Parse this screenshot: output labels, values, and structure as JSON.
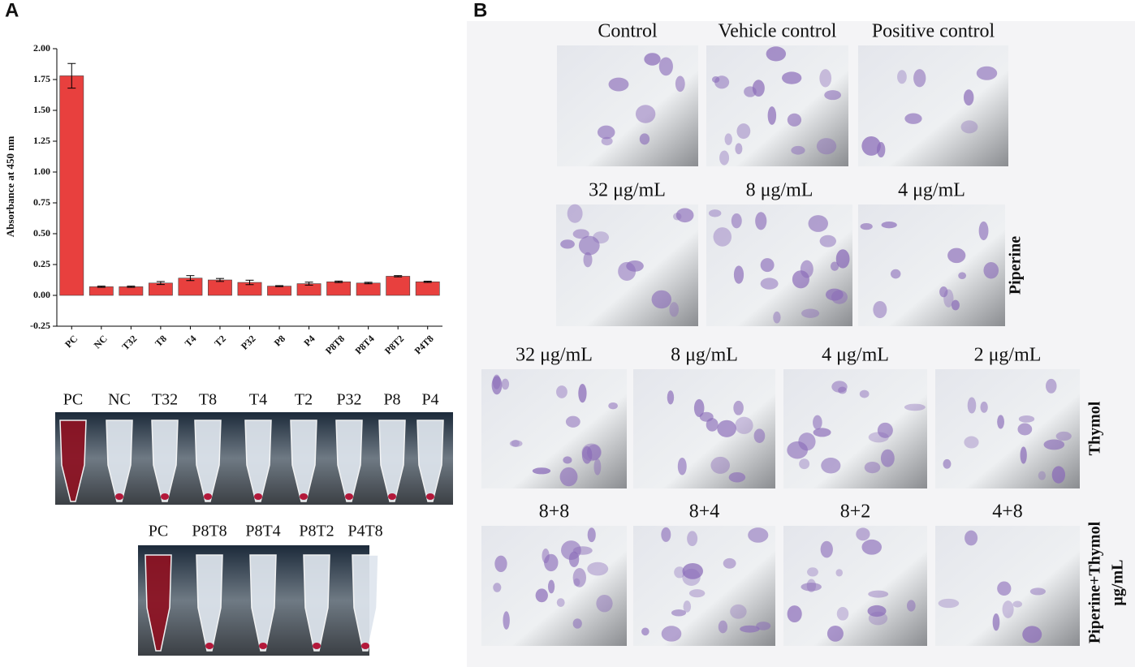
{
  "panels": [
    "A",
    "B"
  ],
  "chart_data": {
    "type": "bar",
    "ylabel": "Absorbance at 450 nm",
    "categories": [
      "PC",
      "NC",
      "T32",
      "T8",
      "T4",
      "T2",
      "P32",
      "P8",
      "P4",
      "P8T8",
      "P8T4",
      "P8T2",
      "P4T8"
    ],
    "values": [
      1.78,
      0.07,
      0.07,
      0.1,
      0.14,
      0.125,
      0.105,
      0.075,
      0.095,
      0.11,
      0.1,
      0.155,
      0.11
    ],
    "errors": [
      0.1,
      0.005,
      0.005,
      0.012,
      0.02,
      0.012,
      0.018,
      0.004,
      0.012,
      0.006,
      0.006,
      0.005,
      0.005
    ],
    "color": "#e8403e",
    "ylim": [
      -0.25,
      2.0
    ],
    "yticks": [
      {
        "value": -0.25,
        "label": "-0.25"
      },
      {
        "value": 0,
        "label": "0.00"
      },
      {
        "value": 0.25,
        "label": "0.25"
      },
      {
        "value": 0.5,
        "label": "0.50"
      },
      {
        "value": 0.75,
        "label": "0.75"
      },
      {
        "value": 1.0,
        "label": "1.00"
      },
      {
        "value": 1.25,
        "label": "1.25"
      },
      {
        "value": 1.5,
        "label": "1.50"
      },
      {
        "value": 1.75,
        "label": "1.75"
      },
      {
        "value": 2.0,
        "label": "2.00"
      }
    ]
  },
  "tube_rack_1": [
    "PC",
    "NC",
    "T32",
    "T8",
    "T4",
    "T2",
    "P32",
    "P8",
    "P4"
  ],
  "tube_rack_2": [
    "PC",
    "P8T8",
    "P8T4",
    "P8T2",
    "P4T8"
  ],
  "micrograph_rows": [
    {
      "labels": [
        "Control",
        "Vehicle control",
        "Positive control"
      ]
    },
    {
      "labels": [
        "32 μg/mL",
        "8 μg/mL",
        "4 μg/mL"
      ],
      "side_label": [
        "Piperine"
      ]
    },
    {
      "labels": [
        "32 μg/mL",
        "8 μg/mL",
        "4 μg/mL",
        "2 μg/mL"
      ],
      "side_label": [
        "Thymol"
      ]
    },
    {
      "labels": [
        "8+8",
        "8+4",
        "8+2",
        "4+8"
      ],
      "side_label": [
        "Piperine+Thymol",
        "μg/mL"
      ]
    }
  ]
}
